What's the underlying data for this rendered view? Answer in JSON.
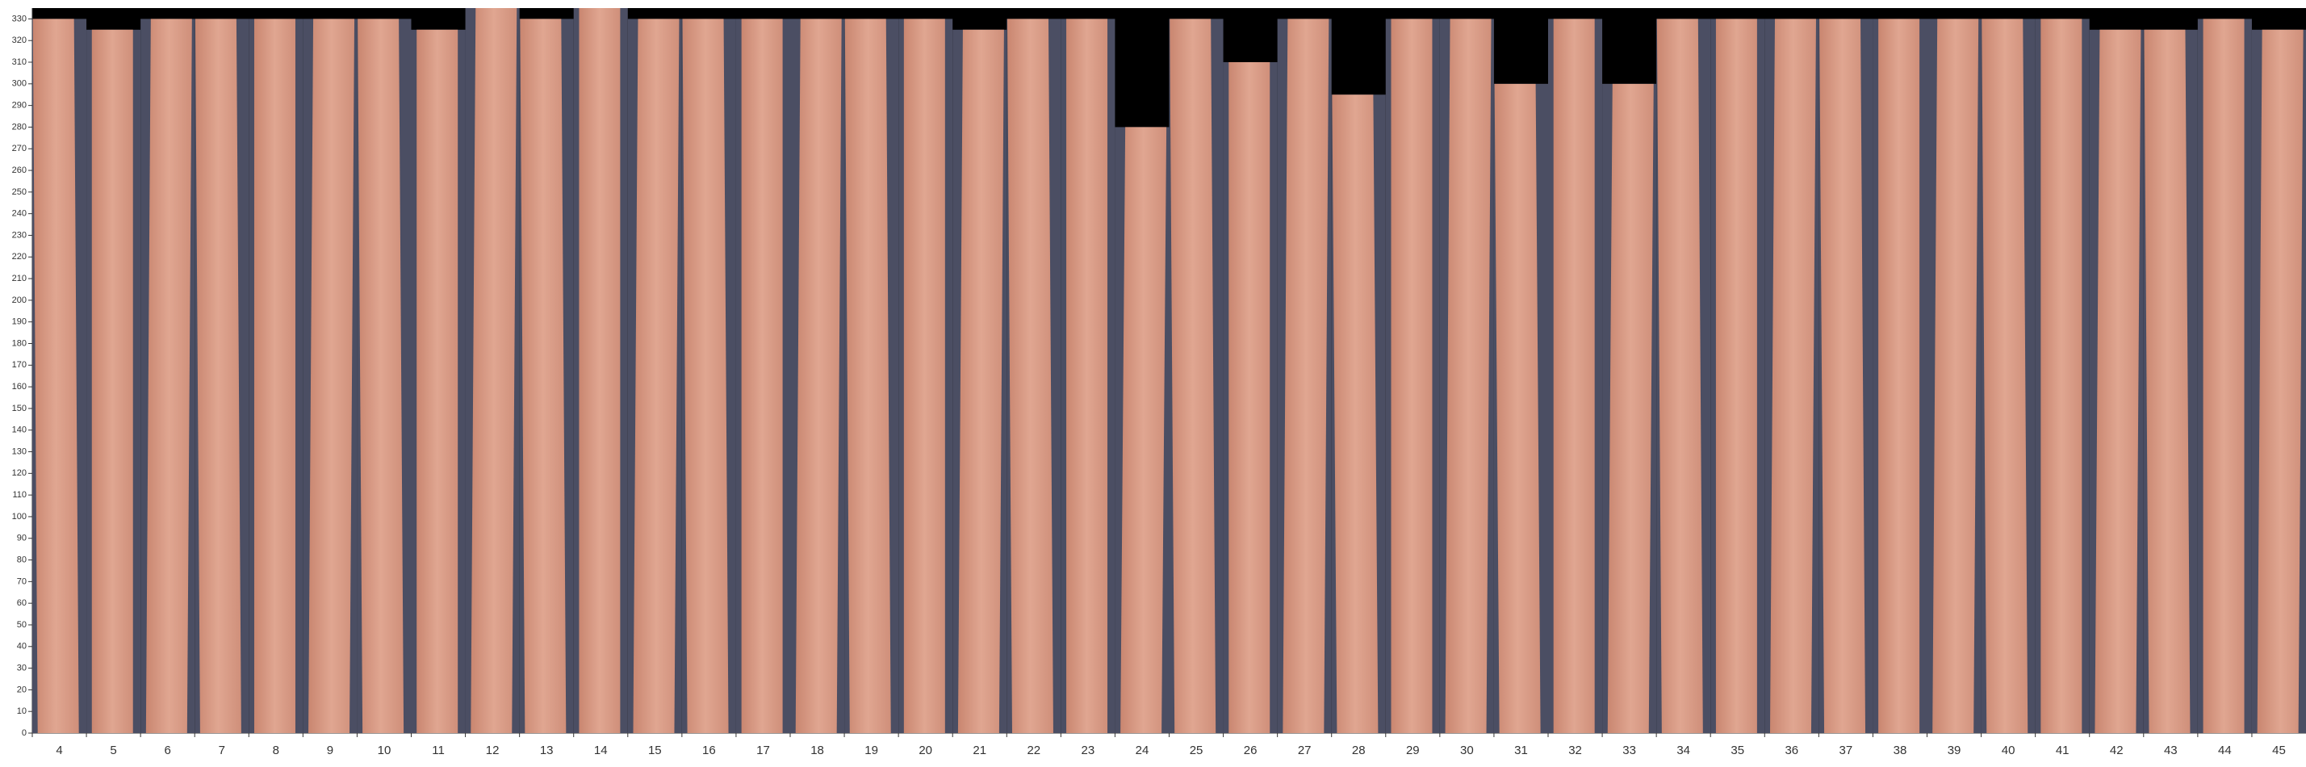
{
  "chart_data": {
    "type": "bar",
    "categories": [
      "4",
      "5",
      "6",
      "7",
      "8",
      "9",
      "10",
      "11",
      "12",
      "13",
      "14",
      "15",
      "16",
      "17",
      "18",
      "19",
      "20",
      "21",
      "22",
      "23",
      "24",
      "25",
      "26",
      "27",
      "28",
      "29",
      "30",
      "31",
      "32",
      "33",
      "34",
      "35",
      "36",
      "37",
      "38",
      "39",
      "40",
      "41",
      "42",
      "43",
      "44",
      "45"
    ],
    "values": [
      330,
      325,
      330,
      330,
      330,
      330,
      330,
      325,
      335,
      330,
      335,
      330,
      330,
      330,
      330,
      330,
      330,
      325,
      330,
      330,
      280,
      330,
      310,
      330,
      295,
      330,
      330,
      300,
      330,
      300,
      330,
      330,
      330,
      330,
      330,
      330,
      330,
      330,
      325,
      325,
      330,
      325
    ],
    "color": "#d99b86",
    "ylim": [
      0,
      335
    ],
    "yticks": [
      0,
      10,
      20,
      30,
      40,
      50,
      60,
      70,
      80,
      90,
      100,
      110,
      120,
      130,
      140,
      150,
      160,
      170,
      180,
      190,
      200,
      210,
      220,
      230,
      240,
      250,
      260,
      270,
      280,
      290,
      300,
      310,
      320,
      330
    ]
  }
}
